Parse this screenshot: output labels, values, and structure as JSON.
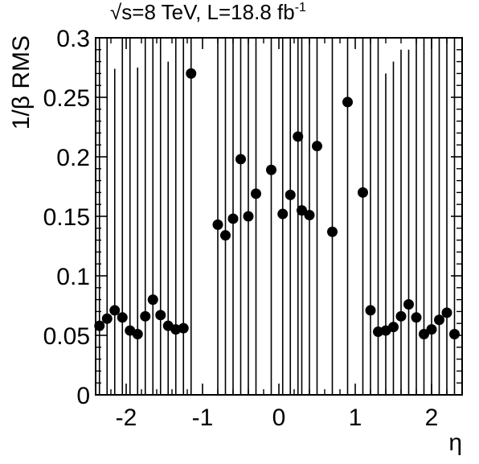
{
  "chart_data": {
    "type": "scatter",
    "title": {
      "sqrt_symbol": "√",
      "text": "s=8 TeV, L=18.8 fb",
      "superscript": "-1"
    },
    "xlabel": "η",
    "ylabel": "1/β RMS",
    "xlim": [
      -2.4,
      2.4
    ],
    "ylim": [
      0,
      0.3
    ],
    "x_ticks": [
      -2,
      -1,
      0,
      1,
      2
    ],
    "x_tick_labels": [
      "-2",
      "-1",
      "0",
      "1",
      "2"
    ],
    "y_ticks": [
      0,
      0.05,
      0.1,
      0.15,
      0.2,
      0.25,
      0.3
    ],
    "y_tick_labels": [
      "0",
      "0.05",
      "0.1",
      "0.15",
      "0.2",
      "0.25",
      "0.3"
    ],
    "grid": false,
    "legend": "none",
    "marker_color": "#000000",
    "points": [
      {
        "x": -2.35,
        "y": 0.058,
        "err_low": 0.058,
        "err_high": 0.242
      },
      {
        "x": -2.25,
        "y": 0.064,
        "err_low": 0.064,
        "err_high": 0.236
      },
      {
        "x": -2.15,
        "y": 0.071,
        "err_low": 0.071,
        "err_high": 0.203
      },
      {
        "x": -2.05,
        "y": 0.065,
        "err_low": 0.065,
        "err_high": 0.235
      },
      {
        "x": -1.95,
        "y": 0.054,
        "err_low": 0.054,
        "err_high": 0.246
      },
      {
        "x": -1.85,
        "y": 0.051,
        "err_low": 0.051,
        "err_high": 0.224
      },
      {
        "x": -1.75,
        "y": 0.066,
        "err_low": 0.066,
        "err_high": 0.234
      },
      {
        "x": -1.65,
        "y": 0.08,
        "err_low": 0.08,
        "err_high": 0.22
      },
      {
        "x": -1.55,
        "y": 0.067,
        "err_low": 0.067,
        "err_high": 0.233
      },
      {
        "x": -1.45,
        "y": 0.058,
        "err_low": 0.058,
        "err_high": 0.222
      },
      {
        "x": -1.35,
        "y": 0.055,
        "err_low": 0.055,
        "err_high": 0.245
      },
      {
        "x": -1.25,
        "y": 0.056,
        "err_low": 0.056,
        "err_high": 0.244
      },
      {
        "x": -1.15,
        "y": 0.27,
        "err_low": 0.27,
        "err_high": 0.03
      },
      {
        "x": -0.8,
        "y": 0.143,
        "err_low": 0.143,
        "err_high": 0.157
      },
      {
        "x": -0.7,
        "y": 0.134,
        "err_low": 0.134,
        "err_high": 0.166
      },
      {
        "x": -0.6,
        "y": 0.148,
        "err_low": 0.148,
        "err_high": 0.152
      },
      {
        "x": -0.5,
        "y": 0.198,
        "err_low": 0.198,
        "err_high": 0.102
      },
      {
        "x": -0.4,
        "y": 0.15,
        "err_low": 0.15,
        "err_high": 0.15
      },
      {
        "x": -0.3,
        "y": 0.169,
        "err_low": 0.169,
        "err_high": 0.131
      },
      {
        "x": -0.1,
        "y": 0.189,
        "err_low": 0.189,
        "err_high": 0.111
      },
      {
        "x": 0.05,
        "y": 0.152,
        "err_low": 0.152,
        "err_high": 0.148
      },
      {
        "x": 0.15,
        "y": 0.168,
        "err_low": 0.168,
        "err_high": 0.132
      },
      {
        "x": 0.25,
        "y": 0.217,
        "err_low": 0.217,
        "err_high": 0.083
      },
      {
        "x": 0.3,
        "y": 0.155,
        "err_low": 0.155,
        "err_high": 0.145
      },
      {
        "x": 0.4,
        "y": 0.151,
        "err_low": 0.151,
        "err_high": 0.149
      },
      {
        "x": 0.5,
        "y": 0.209,
        "err_low": 0.209,
        "err_high": 0.091
      },
      {
        "x": 0.7,
        "y": 0.137,
        "err_low": 0.137,
        "err_high": 0.163
      },
      {
        "x": 0.9,
        "y": 0.246,
        "err_low": 0.246,
        "err_high": 0.054
      },
      {
        "x": 1.1,
        "y": 0.17,
        "err_low": 0.17,
        "err_high": 0.13
      },
      {
        "x": 1.2,
        "y": 0.071,
        "err_low": 0.071,
        "err_high": 0.229
      },
      {
        "x": 1.3,
        "y": 0.053,
        "err_low": 0.053,
        "err_high": 0.247
      },
      {
        "x": 1.4,
        "y": 0.054,
        "err_low": 0.054,
        "err_high": 0.216
      },
      {
        "x": 1.5,
        "y": 0.057,
        "err_low": 0.057,
        "err_high": 0.223
      },
      {
        "x": 1.6,
        "y": 0.066,
        "err_low": 0.066,
        "err_high": 0.224
      },
      {
        "x": 1.7,
        "y": 0.076,
        "err_low": 0.076,
        "err_high": 0.214
      },
      {
        "x": 1.8,
        "y": 0.065,
        "err_low": 0.065,
        "err_high": 0.235
      },
      {
        "x": 1.9,
        "y": 0.051,
        "err_low": 0.051,
        "err_high": 0.249
      },
      {
        "x": 2.0,
        "y": 0.055,
        "err_low": 0.055,
        "err_high": 0.245
      },
      {
        "x": 2.1,
        "y": 0.063,
        "err_low": 0.063,
        "err_high": 0.237
      },
      {
        "x": 2.2,
        "y": 0.069,
        "err_low": 0.069,
        "err_high": 0.231
      },
      {
        "x": 2.3,
        "y": 0.051,
        "err_low": 0.051,
        "err_high": 0.249
      }
    ]
  }
}
